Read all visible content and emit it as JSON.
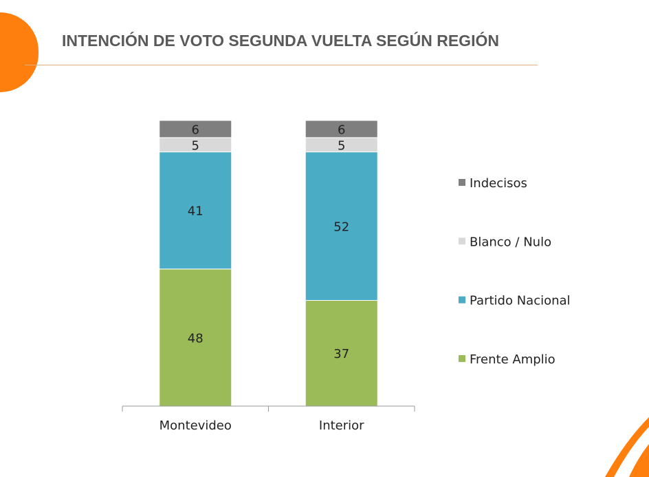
{
  "title": "INTENCIÓN DE VOTO SEGUNDA VUELTA SEGÚN REGIÓN",
  "chart_data": {
    "type": "bar",
    "stacked": true,
    "title": "INTENCIÓN DE VOTO SEGUNDA VUELTA SEGÚN REGIÓN",
    "categories": [
      "Montevideo",
      "Interior"
    ],
    "series": [
      {
        "name": "Frente Amplio",
        "color": "#9bbb59",
        "values": [
          48,
          37
        ]
      },
      {
        "name": "Partido Nacional",
        "color": "#4bacc6",
        "values": [
          41,
          52
        ]
      },
      {
        "name": "Blanco / Nulo",
        "color": "#d9d9d9",
        "values": [
          5,
          5
        ]
      },
      {
        "name": "Indecisos",
        "color": "#7f7f7f",
        "values": [
          6,
          6
        ]
      }
    ],
    "ylim": [
      0,
      100
    ],
    "legend_position": "right",
    "grid": false
  }
}
